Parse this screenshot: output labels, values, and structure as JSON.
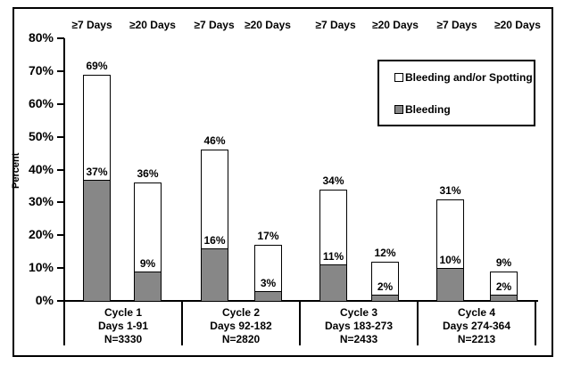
{
  "chart_data": {
    "type": "bar",
    "stacked": true,
    "ylabel": "Percent",
    "ylim": [
      0,
      80
    ],
    "ytick_step": 10,
    "yticks": [
      "0%",
      "10%",
      "20%",
      "30%",
      "40%",
      "50%",
      "60%",
      "70%",
      "80%"
    ],
    "column_headers": [
      "≥7 Days",
      "≥20 Days",
      "≥7 Days",
      "≥20 Days",
      "≥7 Days",
      "≥20 Days",
      "≥7 Days",
      "≥20 Days"
    ],
    "legend": {
      "position": "upper-right",
      "items": [
        {
          "label": "Bleeding and/or Spotting",
          "fill": "#ffffff"
        },
        {
          "label": "Bleeding",
          "fill": "#878787"
        }
      ]
    },
    "groups": [
      {
        "cycle": "Cycle 1",
        "days": "Days 1-91",
        "n": "N=3330",
        "bars": [
          {
            "duration": "≥7 Days",
            "bleeding_and_or_spotting_pct": 69,
            "bleeding_pct": 37
          },
          {
            "duration": "≥20 Days",
            "bleeding_and_or_spotting_pct": 36,
            "bleeding_pct": 9
          }
        ]
      },
      {
        "cycle": "Cycle 2",
        "days": "Days 92-182",
        "n": "N=2820",
        "bars": [
          {
            "duration": "≥7 Days",
            "bleeding_and_or_spotting_pct": 46,
            "bleeding_pct": 16
          },
          {
            "duration": "≥20 Days",
            "bleeding_and_or_spotting_pct": 17,
            "bleeding_pct": 3
          }
        ]
      },
      {
        "cycle": "Cycle 3",
        "days": "Days 183-273",
        "n": "N=2433",
        "bars": [
          {
            "duration": "≥7 Days",
            "bleeding_and_or_spotting_pct": 34,
            "bleeding_pct": 11
          },
          {
            "duration": "≥20 Days",
            "bleeding_and_or_spotting_pct": 12,
            "bleeding_pct": 2
          }
        ]
      },
      {
        "cycle": "Cycle 4",
        "days": "Days 274-364",
        "n": "N=2213",
        "bars": [
          {
            "duration": "≥7 Days",
            "bleeding_and_or_spotting_pct": 31,
            "bleeding_pct": 10
          },
          {
            "duration": "≥20 Days",
            "bleeding_and_or_spotting_pct": 9,
            "bleeding_pct": 2
          }
        ]
      }
    ]
  },
  "colors": {
    "background": "#ffffff",
    "border": "#000000",
    "bar_spotting_fill": "#ffffff",
    "bar_bleeding_fill": "#878787"
  }
}
